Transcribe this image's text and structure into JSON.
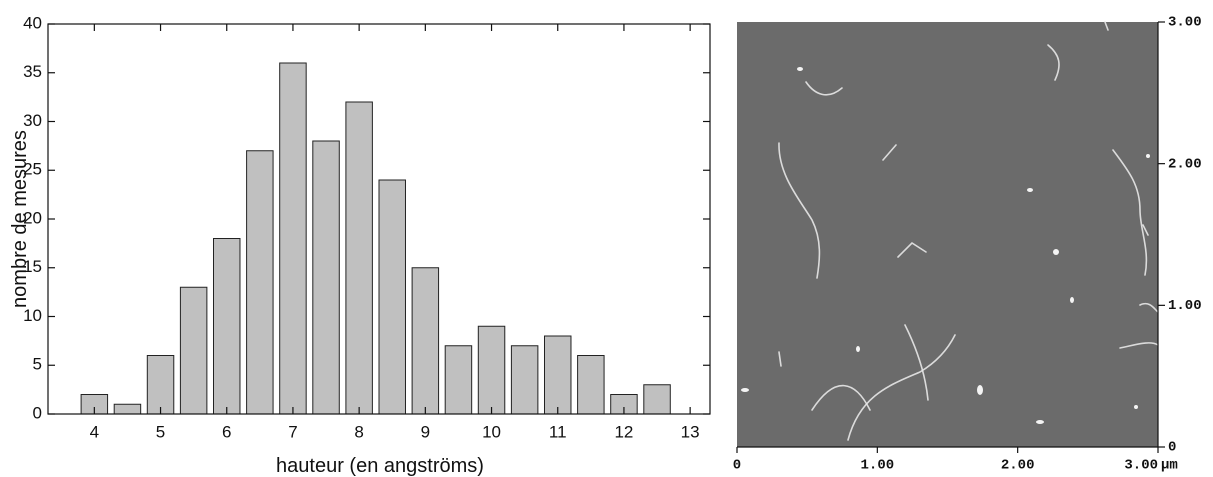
{
  "chart_data": [
    {
      "type": "bar",
      "xlabel": "hauteur (en angströms)",
      "ylabel": "nombre de mesures",
      "x": [
        4,
        4.5,
        5,
        5.5,
        6,
        6.5,
        7,
        7.5,
        8,
        8.5,
        9,
        9.5,
        10,
        10.5,
        11,
        11.5,
        12,
        12.5
      ],
      "values": [
        2,
        1,
        6,
        13,
        18,
        27,
        36,
        28,
        32,
        24,
        15,
        7,
        9,
        7,
        8,
        6,
        2,
        3
      ],
      "color": "#c0c0c0",
      "xlim": [
        3.3,
        13.3
      ],
      "xticks": [
        4,
        5,
        6,
        7,
        8,
        9,
        10,
        11,
        12,
        13
      ],
      "ylim": [
        0,
        40
      ],
      "yticks": [
        0,
        5,
        10,
        15,
        20,
        25,
        30,
        35,
        40
      ]
    },
    {
      "type": "image",
      "xunit": "µm",
      "xlim": [
        0,
        3
      ],
      "xticks": [
        0,
        {
          "value": 1,
          "label": "1.00"
        },
        {
          "value": 2,
          "label": "2.00"
        },
        {
          "value": 3,
          "label": "3.00"
        }
      ],
      "ylim": [
        0,
        3
      ],
      "yticks": [
        0,
        {
          "value": 1,
          "label": "1.00"
        },
        {
          "value": 2,
          "label": "2.00"
        },
        {
          "value": 3,
          "label": "3.00"
        }
      ],
      "color": "#6b6b6b"
    }
  ]
}
